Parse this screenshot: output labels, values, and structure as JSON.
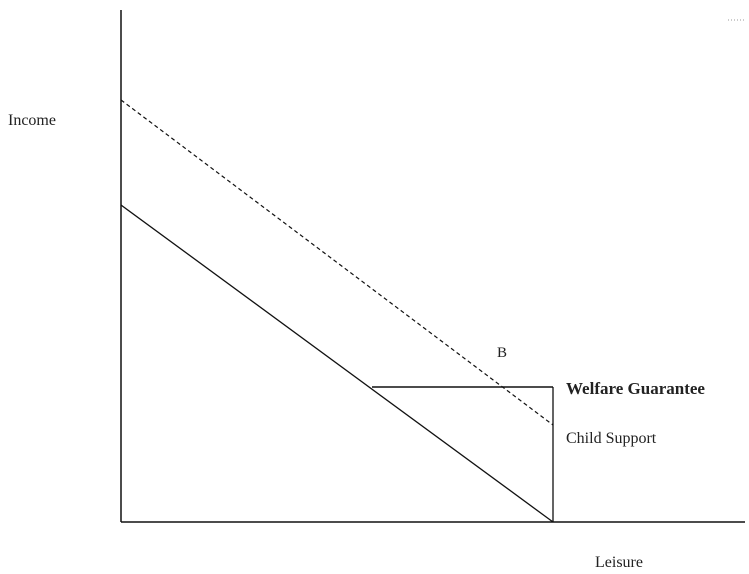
{
  "axes": {
    "y_label": "Income",
    "x_label": "Leisure"
  },
  "labels": {
    "point_b": "B",
    "welfare": "Welfare Guarantee",
    "child_support": "Child Support"
  }
}
